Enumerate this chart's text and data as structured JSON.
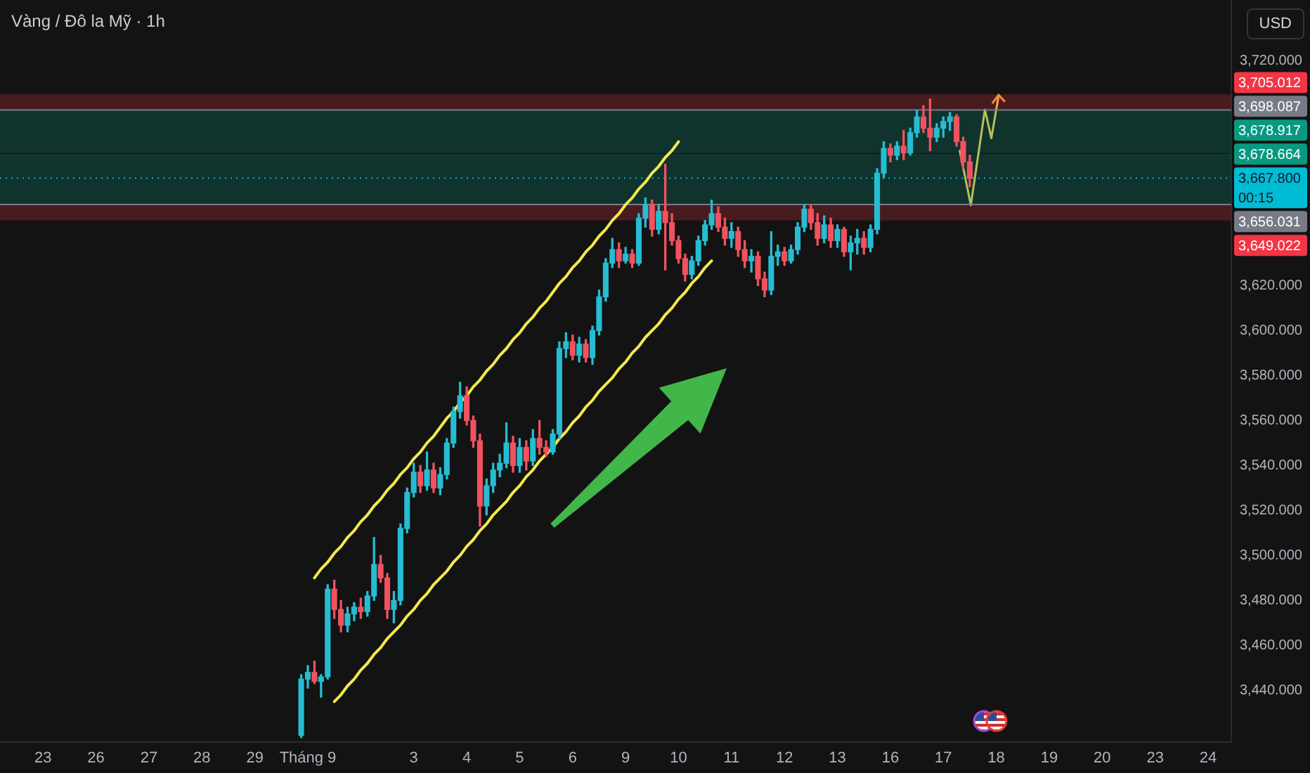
{
  "chart_data": {
    "type": "candlestick",
    "title": "Vàng / Đô la Mỹ · 1h",
    "ylabel": "USD",
    "categories": [
      null,
      null,
      null,
      null,
      null,
      null,
      "23",
      null,
      null,
      null,
      null,
      null,
      null,
      null,
      "26",
      null,
      null,
      null,
      null,
      null,
      null,
      null,
      "27",
      null,
      null,
      null,
      null,
      null,
      null,
      null,
      "28",
      null,
      null,
      null,
      null,
      null,
      null,
      null,
      "29",
      null,
      null,
      null,
      null,
      null,
      null,
      null,
      "Tháng 9",
      null,
      null,
      null,
      null,
      null,
      null,
      null,
      null,
      null,
      null,
      null,
      null,
      null,
      null,
      null,
      "3",
      null,
      null,
      null,
      null,
      null,
      null,
      null,
      "4",
      null,
      null,
      null,
      null,
      null,
      null,
      null,
      "5",
      null,
      null,
      null,
      null,
      null,
      null,
      null,
      "6",
      null,
      null,
      null,
      null,
      null,
      null,
      null,
      "9",
      null,
      null,
      null,
      null,
      null,
      null,
      null,
      "10",
      null,
      null,
      null,
      null,
      null,
      null,
      null,
      "11",
      null,
      null,
      null,
      null,
      null,
      null,
      null,
      "12",
      null,
      null,
      null,
      null,
      null,
      null,
      null,
      "13",
      null,
      null,
      null,
      null,
      null,
      null,
      null,
      "16",
      null,
      null,
      null,
      null,
      null,
      null,
      null,
      "17",
      null,
      null,
      null,
      null,
      null,
      null,
      null,
      "18",
      null,
      null,
      null,
      null,
      null,
      null,
      null,
      "19",
      null,
      null,
      null,
      null,
      null,
      null,
      null,
      "20",
      null,
      null,
      null,
      null,
      null,
      null,
      null,
      "23",
      null,
      null,
      null,
      null,
      null,
      null,
      null,
      "24",
      null,
      null,
      null
    ],
    "ohlc": [
      null,
      null,
      null,
      null,
      null,
      null,
      null,
      null,
      null,
      null,
      null,
      null,
      null,
      null,
      null,
      null,
      null,
      null,
      null,
      null,
      null,
      null,
      null,
      null,
      null,
      null,
      null,
      null,
      null,
      null,
      null,
      null,
      null,
      null,
      null,
      null,
      null,
      null,
      null,
      null,
      null,
      null,
      null,
      null,
      null,
      [
        3420,
        3447,
        3419,
        3445
      ],
      [
        3445,
        3451,
        3441,
        3448
      ],
      [
        3448,
        3453,
        3443,
        3444
      ],
      [
        3444,
        3447,
        3437,
        3446
      ],
      [
        3446,
        3487,
        3445,
        3485
      ],
      [
        3485,
        3489,
        3472,
        3476
      ],
      [
        3476,
        3480,
        3466,
        3469
      ],
      [
        3469,
        3477,
        3466,
        3474
      ],
      [
        3474,
        3479,
        3471,
        3477
      ],
      [
        3477,
        3481,
        3472,
        3475
      ],
      [
        3475,
        3484,
        3473,
        3482
      ],
      [
        3482,
        3508,
        3480,
        3496
      ],
      [
        3496,
        3500,
        3488,
        3490
      ],
      [
        3490,
        3492,
        3472,
        3476
      ],
      [
        3476,
        3484,
        3470,
        3480
      ],
      [
        3480,
        3514,
        3478,
        3512
      ],
      [
        3512,
        3530,
        3510,
        3528
      ],
      [
        3528,
        3541,
        3526,
        3537
      ],
      [
        3537,
        3540,
        3528,
        3531
      ],
      [
        3531,
        3546,
        3529,
        3538
      ],
      [
        3538,
        3541,
        3528,
        3530
      ],
      [
        3530,
        3539,
        3527,
        3536
      ],
      [
        3536,
        3552,
        3534,
        3550
      ],
      [
        3550,
        3566,
        3548,
        3564
      ],
      [
        3564,
        3577,
        3561,
        3571
      ],
      [
        3571,
        3575,
        3558,
        3560
      ],
      [
        3560,
        3562,
        3548,
        3551
      ],
      [
        3551,
        3554,
        3513,
        3522
      ],
      [
        3522,
        3534,
        3518,
        3531
      ],
      [
        3531,
        3541,
        3528,
        3538
      ],
      [
        3538,
        3545,
        3535,
        3541
      ],
      [
        3541,
        3559,
        3539,
        3550
      ],
      [
        3550,
        3553,
        3537,
        3540
      ],
      [
        3540,
        3552,
        3537,
        3548
      ],
      [
        3548,
        3551,
        3538,
        3542
      ],
      [
        3542,
        3556,
        3540,
        3552
      ],
      [
        3552,
        3560,
        3545,
        3548
      ],
      [
        3548,
        3551,
        3544,
        3546
      ],
      [
        3546,
        3556,
        3545,
        3554
      ],
      [
        3554,
        3595,
        3552,
        3592
      ],
      [
        3592,
        3599,
        3588,
        3595
      ],
      [
        3595,
        3598,
        3587,
        3589
      ],
      [
        3589,
        3597,
        3586,
        3594
      ],
      [
        3594,
        3596,
        3586,
        3588
      ],
      [
        3588,
        3602,
        3585,
        3600
      ],
      [
        3600,
        3618,
        3598,
        3615
      ],
      [
        3615,
        3632,
        3613,
        3630
      ],
      [
        3630,
        3641,
        3628,
        3636
      ],
      [
        3636,
        3639,
        3628,
        3631
      ],
      [
        3631,
        3637,
        3630,
        3634
      ],
      [
        3634,
        3636,
        3628,
        3630
      ],
      [
        3630,
        3652,
        3629,
        3650
      ],
      [
        3650,
        3659,
        3646,
        3656
      ],
      [
        3656,
        3658,
        3642,
        3645
      ],
      [
        3645,
        3656,
        3643,
        3653
      ],
      [
        3653,
        3674,
        3627,
        3648
      ],
      [
        3648,
        3652,
        3638,
        3640
      ],
      [
        3640,
        3642,
        3630,
        3632
      ],
      [
        3632,
        3634,
        3622,
        3625
      ],
      [
        3625,
        3633,
        3623,
        3631
      ],
      [
        3631,
        3642,
        3629,
        3640
      ],
      [
        3640,
        3649,
        3638,
        3647
      ],
      [
        3647,
        3658,
        3645,
        3652
      ],
      [
        3652,
        3655,
        3644,
        3646
      ],
      [
        3646,
        3650,
        3638,
        3641
      ],
      [
        3641,
        3648,
        3637,
        3644
      ],
      [
        3644,
        3646,
        3633,
        3636
      ],
      [
        3636,
        3640,
        3628,
        3631
      ],
      [
        3631,
        3636,
        3626,
        3633
      ],
      [
        3633,
        3635,
        3620,
        3623
      ],
      [
        3623,
        3626,
        3615,
        3618
      ],
      [
        3618,
        3644,
        3616,
        3633
      ],
      [
        3633,
        3638,
        3629,
        3635
      ],
      [
        3635,
        3637,
        3629,
        3631
      ],
      [
        3631,
        3638,
        3630,
        3636
      ],
      [
        3636,
        3648,
        3634,
        3646
      ],
      [
        3646,
        3656,
        3644,
        3654
      ],
      [
        3654,
        3656,
        3645,
        3648
      ],
      [
        3648,
        3652,
        3638,
        3641
      ],
      [
        3641,
        3651,
        3639,
        3647
      ],
      [
        3647,
        3650,
        3637,
        3640
      ],
      [
        3640,
        3647,
        3637,
        3645
      ],
      [
        3645,
        3646,
        3633,
        3635
      ],
      [
        3635,
        3642,
        3627,
        3639
      ],
      [
        3639,
        3645,
        3634,
        3641
      ],
      [
        3641,
        3644,
        3634,
        3637
      ],
      [
        3637,
        3647,
        3635,
        3645
      ],
      [
        3645,
        3672,
        3643,
        3670
      ],
      [
        3670,
        3684,
        3668,
        3681
      ],
      [
        3681,
        3683,
        3675,
        3678
      ],
      [
        3678,
        3684,
        3676,
        3682
      ],
      [
        3682,
        3689,
        3676,
        3679
      ],
      [
        3679,
        3690,
        3678,
        3688
      ],
      [
        3688,
        3698,
        3686,
        3695
      ],
      [
        3695,
        3700,
        3688,
        3690
      ],
      [
        3690,
        3703,
        3680,
        3686
      ],
      [
        3686,
        3692,
        3684,
        3690
      ],
      [
        3690,
        3695,
        3686,
        3693
      ],
      [
        3693,
        3697,
        3689,
        3695
      ],
      [
        3695,
        3696,
        3682,
        3684
      ],
      [
        3684,
        3686,
        3672,
        3675
      ],
      [
        3675,
        3678,
        3664,
        3667.8
      ],
      null,
      null,
      null,
      null,
      null,
      null,
      null,
      null,
      null,
      null,
      null,
      null,
      null,
      null,
      null,
      null,
      null,
      null,
      null,
      null,
      null,
      null,
      null,
      null,
      null,
      null,
      null,
      null,
      null,
      null,
      null,
      null,
      null,
      null,
      null,
      null,
      null,
      null,
      null
    ],
    "colors": [
      null,
      null,
      null,
      null,
      null,
      null,
      null,
      null,
      null,
      null,
      null,
      null,
      null,
      null,
      null,
      null,
      null,
      null,
      null,
      null,
      null,
      null,
      null,
      null,
      null,
      null,
      null,
      null,
      null,
      null,
      null,
      null,
      null,
      null,
      null,
      null,
      null,
      null,
      null,
      null,
      null,
      null,
      null,
      null,
      null,
      "#26bcd1",
      "#26bcd1",
      "#f0525f",
      "#26bcd1",
      "#26bcd1",
      "#f0525f",
      "#f0525f",
      "#26bcd1",
      "#26bcd1",
      "#f0525f",
      "#26bcd1",
      "#26bcd1",
      "#f0525f",
      "#f0525f",
      "#26bcd1",
      "#26bcd1",
      "#26bcd1",
      "#26bcd1",
      "#f0525f",
      "#26bcd1",
      "#f0525f",
      "#26bcd1",
      "#26bcd1",
      "#26bcd1",
      "#26bcd1",
      "#f0525f",
      "#f0525f",
      "#f0525f",
      "#26bcd1",
      "#26bcd1",
      "#26bcd1",
      "#26bcd1",
      "#f0525f",
      "#26bcd1",
      "#f0525f",
      "#26bcd1",
      "#f0525f",
      "#f0525f",
      "#26bcd1",
      "#26bcd1",
      "#26bcd1",
      "#f0525f",
      "#26bcd1",
      "#f0525f",
      "#26bcd1",
      "#26bcd1",
      "#26bcd1",
      "#26bcd1",
      "#f0525f",
      "#26bcd1",
      "#f0525f",
      "#26bcd1",
      "#26bcd1",
      "#f0525f",
      "#26bcd1",
      "#f0525f",
      "#f0525f",
      "#f0525f",
      "#f0525f",
      "#26bcd1",
      "#26bcd1",
      "#26bcd1",
      "#26bcd1",
      "#f0525f",
      "#f0525f",
      "#26bcd1",
      "#f0525f",
      "#f0525f",
      "#26bcd1",
      "#f0525f",
      "#f0525f",
      "#26bcd1",
      "#26bcd1",
      "#f0525f",
      "#26bcd1",
      "#26bcd1",
      "#26bcd1",
      "#f0525f",
      "#f0525f",
      "#26bcd1",
      "#f0525f",
      "#26bcd1",
      "#f0525f",
      "#26bcd1",
      "#26bcd1",
      "#f0525f",
      "#26bcd1",
      "#26bcd1",
      "#26bcd1",
      "#f0525f",
      "#26bcd1",
      "#f0525f",
      "#26bcd1",
      "#26bcd1",
      "#f0525f",
      "#f0525f",
      "#26bcd1",
      "#26bcd1",
      "#26bcd1",
      "#f0525f",
      "#f0525f",
      "#f0525f",
      null,
      null,
      null,
      null,
      null,
      null,
      null,
      null,
      null,
      null,
      null,
      null,
      null,
      null,
      null,
      null,
      null,
      null,
      null,
      null,
      null,
      null,
      null,
      null,
      null,
      null,
      null,
      null,
      null,
      null,
      null,
      null,
      null,
      null,
      null,
      null,
      null,
      null,
      null
    ],
    "series": [
      {
        "type": "line",
        "color": "#f2e94e",
        "values": [
          null,
          null,
          null,
          null,
          null,
          null,
          null,
          null,
          null,
          null,
          null,
          null,
          null,
          null,
          null,
          null,
          null,
          null,
          null,
          null,
          null,
          null,
          null,
          null,
          null,
          null,
          null,
          null,
          null,
          null,
          null,
          null,
          null,
          null,
          null,
          null,
          null,
          null,
          null,
          null,
          null,
          null,
          null,
          null,
          null,
          null,
          null,
          3490,
          3494,
          3497,
          3501,
          3504,
          3508,
          3511,
          3515,
          3518,
          3522,
          3525,
          3529,
          3532,
          3536,
          3539,
          3543,
          3546,
          3550,
          3553,
          3557,
          3561,
          3564,
          3568,
          3571,
          3575,
          3578,
          3582,
          3585,
          3589,
          3592,
          3596,
          3599,
          3603,
          3606,
          3610,
          3613,
          3617,
          3621,
          3624,
          3628,
          3631,
          3635,
          3638,
          3642,
          3645,
          3649,
          3652,
          3656,
          3659,
          3663,
          3666,
          3670,
          3673,
          3677,
          3680,
          3684,
          null,
          null,
          null,
          null,
          null,
          null,
          null,
          null,
          null,
          null,
          null,
          null,
          null,
          null,
          null,
          null,
          null,
          null,
          null,
          null,
          null,
          null,
          null,
          null,
          null,
          null,
          null,
          null,
          null,
          null,
          null,
          null,
          null,
          null,
          null,
          null,
          null,
          null,
          null,
          null,
          null,
          null,
          null,
          null,
          null,
          null,
          null,
          null,
          null,
          null,
          null,
          null,
          null,
          null,
          null,
          null,
          null,
          null,
          null,
          null,
          null,
          null,
          null,
          null,
          null,
          null,
          null,
          null,
          null,
          null,
          null,
          null,
          null,
          null,
          null,
          null,
          null,
          null,
          null,
          null,
          null,
          null,
          null
        ]
      },
      {
        "type": "line",
        "color": "#f2e94e",
        "values": [
          null,
          null,
          null,
          null,
          null,
          null,
          null,
          null,
          null,
          null,
          null,
          null,
          null,
          null,
          null,
          null,
          null,
          null,
          null,
          null,
          null,
          null,
          null,
          null,
          null,
          null,
          null,
          null,
          null,
          null,
          null,
          null,
          null,
          null,
          null,
          null,
          null,
          null,
          null,
          null,
          null,
          null,
          null,
          null,
          null,
          null,
          null,
          null,
          null,
          null,
          3435,
          3438,
          3442,
          3445,
          3449,
          3452,
          3456,
          3459,
          3463,
          3466,
          3469,
          3473,
          3476,
          3480,
          3483,
          3487,
          3490,
          3493,
          3497,
          3500,
          3504,
          3507,
          3511,
          3514,
          3518,
          3521,
          3524,
          3528,
          3531,
          3535,
          3538,
          3542,
          3545,
          3548,
          3552,
          3555,
          3559,
          3562,
          3566,
          3569,
          3573,
          3576,
          3579,
          3583,
          3586,
          3590,
          3593,
          3597,
          3600,
          3603,
          3607,
          3610,
          3614,
          3617,
          3621,
          3624,
          3628,
          3631,
          null,
          null,
          null,
          null,
          null,
          null,
          null,
          null,
          null,
          null,
          null,
          null,
          null,
          null,
          null,
          null,
          null,
          null,
          null,
          null,
          null,
          null,
          null,
          null,
          null,
          null,
          null,
          null,
          null,
          null,
          null,
          null,
          null,
          null,
          null,
          null,
          null,
          null,
          null,
          null,
          null,
          null,
          null,
          null,
          null,
          null,
          null,
          null,
          null,
          null,
          null,
          null,
          null,
          null,
          null,
          null,
          null,
          null,
          null,
          null,
          null,
          null,
          null,
          null,
          null,
          null,
          null,
          null,
          null,
          null,
          null,
          null,
          null,
          null,
          null,
          null,
          null,
          null
        ]
      }
    ],
    "ylim": [
      3417,
      3747
    ],
    "yticks": [
      {
        "value": 3440,
        "label": "3,440.000"
      },
      {
        "value": 3460,
        "label": "3,460.000"
      },
      {
        "value": 3480,
        "label": "3,480.000"
      },
      {
        "value": 3500,
        "label": "3,500.000"
      },
      {
        "value": 3520,
        "label": "3,520.000"
      },
      {
        "value": 3540,
        "label": "3,540.000"
      },
      {
        "value": 3560,
        "label": "3,560.000"
      },
      {
        "value": 3580,
        "label": "3,580.000"
      },
      {
        "value": 3600,
        "label": "3,600.000"
      },
      {
        "value": 3620,
        "label": "3,620.000"
      },
      {
        "value": 3720,
        "label": "3,720.000"
      }
    ],
    "ref_lines": [
      {
        "axis": "y",
        "value": 3698.087,
        "label": "3,698.087",
        "color": "#787b86"
      },
      {
        "axis": "y",
        "value": 3667.8,
        "label": "3,667.800",
        "color": "#00bcd4",
        "line_style": "dotted"
      },
      {
        "axis": "y",
        "value": 3656.031,
        "label": "3,656.031",
        "color": "#787b86"
      }
    ],
    "bands": [
      {
        "axis": "y",
        "from": 3698.087,
        "to": 3705.012,
        "label": "3,705.012",
        "color": "#f23645"
      },
      {
        "axis": "y",
        "from": 3678.917,
        "to": 3698.087,
        "label": "3,678.917",
        "color": "#089981"
      },
      {
        "axis": "y",
        "from": 3656.031,
        "to": 3678.664,
        "label": "3,678.664",
        "color": "#089981"
      },
      {
        "axis": "y",
        "from": 3649.022,
        "to": 3656.031,
        "label": "3,649.022",
        "color": "#f23645"
      }
    ],
    "annotations": [
      "00:15"
    ]
  }
}
